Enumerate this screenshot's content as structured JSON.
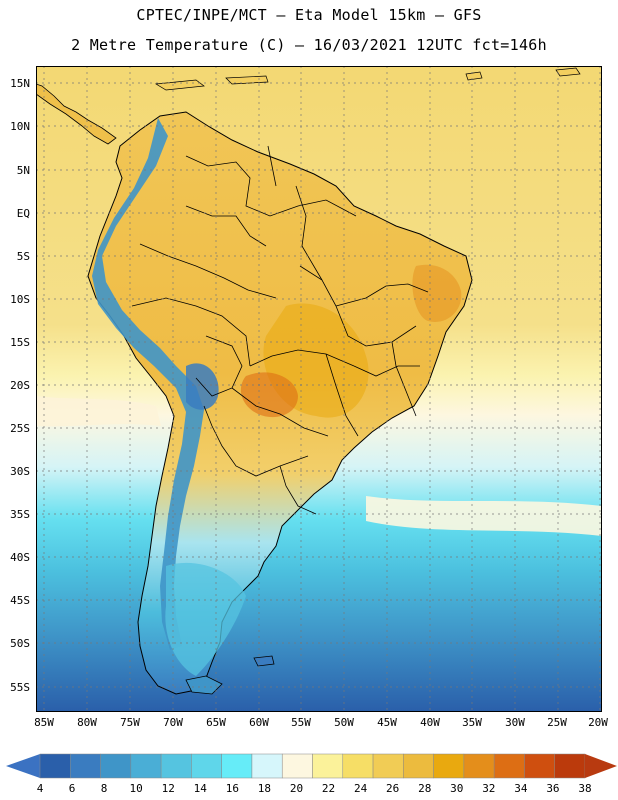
{
  "header": {
    "line1": "CPTEC/INPE/MCT –  Eta Model 15km – GFS",
    "line2": "2 Metre Temperature (C) – 16/03/2021 12UTC fct=146h"
  },
  "map": {
    "lat_labels": [
      "15N",
      "10N",
      "5N",
      "EQ",
      "5S",
      "10S",
      "15S",
      "20S",
      "25S",
      "30S",
      "35S",
      "40S",
      "45S",
      "50S",
      "55S"
    ],
    "lon_labels": [
      "85W",
      "80W",
      "75W",
      "70W",
      "65W",
      "60W",
      "55W",
      "50W",
      "45W",
      "40W",
      "35W",
      "30W",
      "25W",
      "20W"
    ],
    "gridlines": true,
    "boundaries": [
      "coastlines",
      "country borders",
      "Brazilian state borders"
    ]
  },
  "colorbar": {
    "ticks": [
      "4",
      "6",
      "8",
      "10",
      "12",
      "14",
      "16",
      "18",
      "20",
      "22",
      "24",
      "26",
      "28",
      "30",
      "32",
      "34",
      "36",
      "38"
    ],
    "colors": [
      "#2a5faa",
      "#3a7cc0",
      "#3f95c8",
      "#4aaed6",
      "#55c4e0",
      "#5fd6ea",
      "#66ecf8",
      "#d6f6fb",
      "#fdf7e0",
      "#fbf29a",
      "#f6de66",
      "#f1cc55",
      "#ecbb3e",
      "#e9a90f",
      "#e48e1b",
      "#dd6e14",
      "#cf4f0f",
      "#bb3a0c"
    ],
    "under_color": "#3b72c2",
    "over_color": "#b83a10"
  }
}
